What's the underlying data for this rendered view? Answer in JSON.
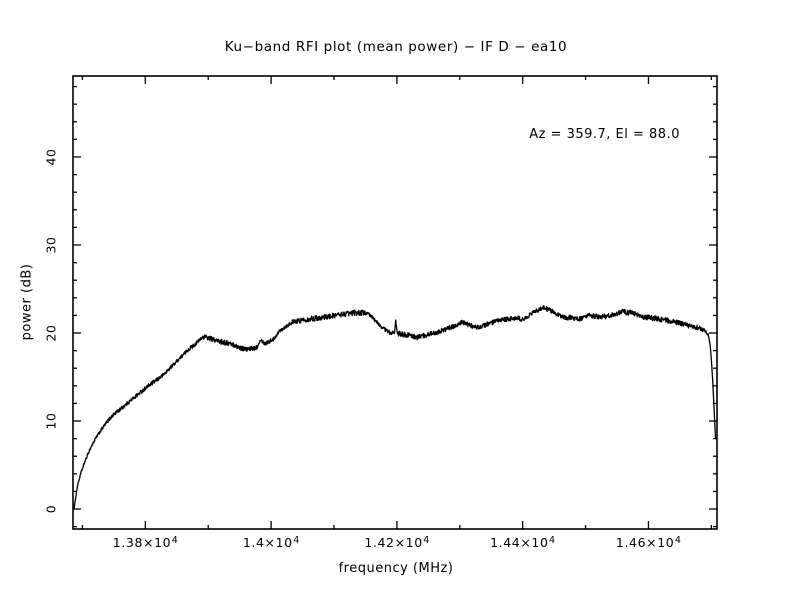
{
  "colors": {
    "background": "#ffffff",
    "line": "#000000",
    "text": "#000000"
  },
  "chart_data": {
    "type": "line",
    "title": "Ku−band RFI plot (mean power) − IF D − ea10",
    "annotation": "Az = 359.7, El = 88.0",
    "xlabel": "frequency (MHz)",
    "ylabel": "power (dB)",
    "xlim": [
      13685,
      14709
    ],
    "ylim": [
      -2.27,
      49.2
    ],
    "grid": false,
    "legend": "none",
    "x_major_ticks": [
      13800,
      14000,
      14200,
      14400,
      14600
    ],
    "x_major_tick_labels": [
      {
        "m": "1.38×10",
        "e": "4"
      },
      {
        "m": "1.4×10",
        "e": "4"
      },
      {
        "m": "1.42×10",
        "e": "4"
      },
      {
        "m": "1.44×10",
        "e": "4"
      },
      {
        "m": "1.46×10",
        "e": "4"
      }
    ],
    "x_minor_start": 13700,
    "x_minor_end": 14700,
    "x_minor_step": 100,
    "y_major_ticks": [
      0,
      10,
      20,
      30,
      40
    ],
    "y_major_tick_labels": [
      "0",
      "10",
      "20",
      "30",
      "40"
    ],
    "y_minor_start": -2,
    "y_minor_end": 48,
    "y_minor_step": 2,
    "series": [
      {
        "name": "mean power",
        "color": "#000000",
        "noise_db": 0.32,
        "noise_seed": 1234,
        "points": [
          [
            13687,
            0.2
          ],
          [
            13692,
            2.6
          ],
          [
            13698,
            4.2
          ],
          [
            13704,
            5.4
          ],
          [
            13712,
            6.8
          ],
          [
            13720,
            7.9
          ],
          [
            13728,
            8.8
          ],
          [
            13739,
            9.9
          ],
          [
            13749,
            10.7
          ],
          [
            13763,
            11.5
          ],
          [
            13776,
            12.3
          ],
          [
            13788,
            13.0
          ],
          [
            13803,
            13.9
          ],
          [
            13815,
            14.5
          ],
          [
            13828,
            15.2
          ],
          [
            13839,
            16.0
          ],
          [
            13850,
            16.8
          ],
          [
            13860,
            17.5
          ],
          [
            13868,
            18.1
          ],
          [
            13877,
            18.6
          ],
          [
            13885,
            19.1
          ],
          [
            13892,
            19.6
          ],
          [
            13906,
            19.3
          ],
          [
            13920,
            19.0
          ],
          [
            13935,
            18.8
          ],
          [
            13952,
            18.3
          ],
          [
            13963,
            18.1
          ],
          [
            13978,
            18.4
          ],
          [
            13983,
            19.3
          ],
          [
            13990,
            18.8
          ],
          [
            14004,
            19.3
          ],
          [
            14014,
            20.3
          ],
          [
            14033,
            21.2
          ],
          [
            14051,
            21.5
          ],
          [
            14073,
            21.7
          ],
          [
            14094,
            21.9
          ],
          [
            14110,
            22.1
          ],
          [
            14133,
            22.3
          ],
          [
            14150,
            22.3
          ],
          [
            14161,
            21.8
          ],
          [
            14172,
            20.9
          ],
          [
            14185,
            20.2
          ],
          [
            14196,
            19.9
          ],
          [
            14198,
            21.3
          ],
          [
            14201,
            19.9
          ],
          [
            14215,
            19.8
          ],
          [
            14232,
            19.5
          ],
          [
            14248,
            19.8
          ],
          [
            14268,
            20.2
          ],
          [
            14289,
            20.7
          ],
          [
            14303,
            21.2
          ],
          [
            14315,
            20.9
          ],
          [
            14327,
            20.6
          ],
          [
            14348,
            21.1
          ],
          [
            14369,
            21.5
          ],
          [
            14391,
            21.7
          ],
          [
            14401,
            21.5
          ],
          [
            14416,
            22.3
          ],
          [
            14432,
            22.9
          ],
          [
            14449,
            22.4
          ],
          [
            14464,
            21.8
          ],
          [
            14481,
            21.7
          ],
          [
            14492,
            21.6
          ],
          [
            14507,
            22.0
          ],
          [
            14523,
            21.8
          ],
          [
            14540,
            22.0
          ],
          [
            14558,
            22.4
          ],
          [
            14574,
            22.3
          ],
          [
            14591,
            21.8
          ],
          [
            14607,
            21.7
          ],
          [
            14623,
            21.5
          ],
          [
            14639,
            21.3
          ],
          [
            14655,
            21.0
          ],
          [
            14671,
            20.7
          ],
          [
            14683,
            20.5
          ],
          [
            14690,
            20.3
          ],
          [
            14695,
            19.8
          ],
          [
            14698,
            18.7
          ],
          [
            14700,
            17.0
          ],
          [
            14702,
            14.8
          ],
          [
            14704,
            11.8
          ],
          [
            14706,
            9.0
          ],
          [
            14707,
            7.4
          ]
        ]
      }
    ]
  }
}
